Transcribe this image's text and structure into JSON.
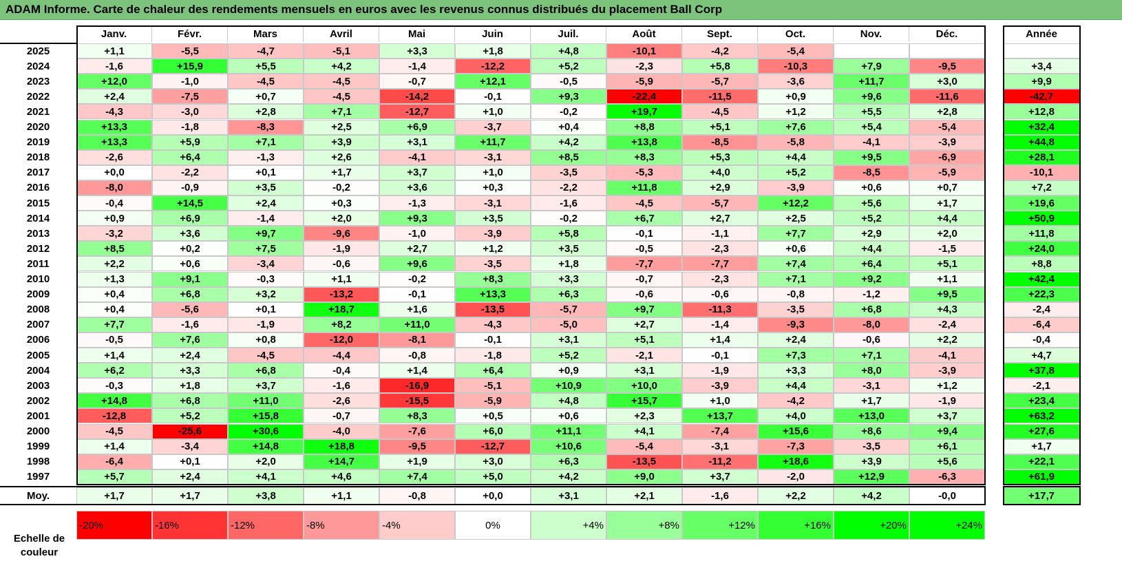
{
  "title": "ADAM Informe. Carte de chaleur des rendements mensuels en euros avec les revenus connus distribués du placement Ball Corp",
  "colors": {
    "negative_max": "#ff0000",
    "neutral": "#ffffff",
    "positive_max": "#00ff00",
    "title_bg": "#7cc47c"
  },
  "chart_data": {
    "type": "heatmap",
    "title": "ADAM Informe. Carte de chaleur des rendements mensuels en euros avec les revenus connus distribués du placement Ball Corp",
    "months": [
      "Janv.",
      "Févr.",
      "Mars",
      "Avril",
      "Mai",
      "Juin",
      "Juil.",
      "Août",
      "Sept.",
      "Oct.",
      "Nov.",
      "Déc."
    ],
    "year_col_label": "Année",
    "rows": [
      {
        "year": "2025",
        "values": [
          "+1,1",
          "-5,5",
          "-4,7",
          "-5,1",
          "+3,3",
          "+1,8",
          "+4,8",
          "-10,1",
          "-4,2",
          "-5,4",
          "",
          ""
        ],
        "annual": ""
      },
      {
        "year": "2024",
        "values": [
          "-1,6",
          "+15,9",
          "+5,5",
          "+4,2",
          "-1,4",
          "-12,2",
          "+5,2",
          "-2,3",
          "+5,8",
          "-10,3",
          "+7,9",
          "-9,5"
        ],
        "annual": "+3,4"
      },
      {
        "year": "2023",
        "values": [
          "+12,0",
          "-1,0",
          "-4,5",
          "-4,5",
          "-0,7",
          "+12,1",
          "-0,5",
          "-5,9",
          "-5,7",
          "-3,6",
          "+11,7",
          "+3,0"
        ],
        "annual": "+9,9"
      },
      {
        "year": "2022",
        "values": [
          "+2,4",
          "-7,5",
          "+0,7",
          "-4,5",
          "-14,2",
          "-0,1",
          "+9,3",
          "-22,4",
          "-11,5",
          "+0,9",
          "+9,6",
          "-11,6"
        ],
        "annual": "-42,7"
      },
      {
        "year": "2021",
        "values": [
          "-4,3",
          "-3,0",
          "+2,8",
          "+7,1",
          "-12,7",
          "+1,0",
          "-0,2",
          "+19,7",
          "-4,5",
          "+1,2",
          "+5,5",
          "+2,8"
        ],
        "annual": "+12,8"
      },
      {
        "year": "2020",
        "values": [
          "+13,3",
          "-1,8",
          "-8,3",
          "+2,5",
          "+6,9",
          "-3,7",
          "+0,4",
          "+8,8",
          "+5,1",
          "+7,6",
          "+5,4",
          "-5,4"
        ],
        "annual": "+32,4"
      },
      {
        "year": "2019",
        "values": [
          "+13,3",
          "+5,9",
          "+7,1",
          "+3,9",
          "+3,1",
          "+11,7",
          "+4,2",
          "+13,8",
          "-8,5",
          "-5,8",
          "-4,1",
          "-3,9"
        ],
        "annual": "+44,8"
      },
      {
        "year": "2018",
        "values": [
          "-2,6",
          "+6,4",
          "-1,3",
          "+2,6",
          "-4,1",
          "-3,1",
          "+8,5",
          "+8,3",
          "+5,3",
          "+4,4",
          "+9,5",
          "-6,9"
        ],
        "annual": "+28,1"
      },
      {
        "year": "2017",
        "values": [
          "+0,0",
          "-2,2",
          "+0,1",
          "+1,7",
          "+3,7",
          "+1,0",
          "-3,5",
          "-5,3",
          "+4,0",
          "+5,2",
          "-8,5",
          "-5,9"
        ],
        "annual": "-10,1"
      },
      {
        "year": "2016",
        "values": [
          "-8,0",
          "-0,9",
          "+3,5",
          "-0,2",
          "+3,6",
          "+0,3",
          "-2,2",
          "+11,8",
          "+2,9",
          "-3,9",
          "+0,6",
          "+0,7"
        ],
        "annual": "+7,2"
      },
      {
        "year": "2015",
        "values": [
          "-0,4",
          "+14,5",
          "+2,4",
          "+0,3",
          "-1,3",
          "-3,1",
          "-1,6",
          "-4,5",
          "-5,7",
          "+12,2",
          "+5,6",
          "+1,7"
        ],
        "annual": "+19,6"
      },
      {
        "year": "2014",
        "values": [
          "+0,9",
          "+6,9",
          "-1,4",
          "+2,0",
          "+9,3",
          "+3,5",
          "-0,2",
          "+6,7",
          "+2,7",
          "+2,5",
          "+5,2",
          "+4,4"
        ],
        "annual": "+50,9"
      },
      {
        "year": "2013",
        "values": [
          "-3,2",
          "+3,6",
          "+9,7",
          "-9,6",
          "-1,0",
          "-3,9",
          "+5,8",
          "-0,1",
          "-1,1",
          "+7,7",
          "+2,9",
          "+2,0"
        ],
        "annual": "+11,8"
      },
      {
        "year": "2012",
        "values": [
          "+8,5",
          "+0,2",
          "+7,5",
          "-1,9",
          "+2,7",
          "+1,2",
          "+3,5",
          "-0,5",
          "-2,3",
          "+0,6",
          "+4,4",
          "-1,5"
        ],
        "annual": "+24,0"
      },
      {
        "year": "2011",
        "values": [
          "+2,2",
          "+0,6",
          "-3,4",
          "-0,6",
          "+9,6",
          "-3,5",
          "+1,8",
          "-7,7",
          "-7,7",
          "+7,4",
          "+6,4",
          "+5,1"
        ],
        "annual": "+8,8"
      },
      {
        "year": "2010",
        "values": [
          "+1,3",
          "+9,1",
          "-0,3",
          "+1,1",
          "-0,2",
          "+8,3",
          "+3,3",
          "-0,7",
          "-2,3",
          "+7,1",
          "+9,2",
          "+1,1"
        ],
        "annual": "+42,4"
      },
      {
        "year": "2009",
        "values": [
          "+0,4",
          "+6,8",
          "+3,2",
          "-13,2",
          "-0,1",
          "+13,3",
          "+6,3",
          "-0,6",
          "-0,6",
          "-0,8",
          "-1,2",
          "+9,5"
        ],
        "annual": "+22,3"
      },
      {
        "year": "2008",
        "values": [
          "+0,4",
          "-5,6",
          "+0,1",
          "+18,7",
          "+1,6",
          "-13,5",
          "-5,7",
          "+9,7",
          "-11,3",
          "-3,5",
          "+6,8",
          "+4,3"
        ],
        "annual": "-2,4"
      },
      {
        "year": "2007",
        "values": [
          "+7,7",
          "-1,6",
          "-1,9",
          "+8,2",
          "+11,0",
          "-4,3",
          "-5,0",
          "+2,7",
          "-1,4",
          "-9,3",
          "-8,0",
          "-2,4"
        ],
        "annual": "-6,4"
      },
      {
        "year": "2006",
        "values": [
          "-0,5",
          "+7,6",
          "+0,8",
          "-12,0",
          "-8,1",
          "-0,1",
          "+3,1",
          "+5,1",
          "+1,4",
          "+2,4",
          "-0,6",
          "+2,2"
        ],
        "annual": "-0,4"
      },
      {
        "year": "2005",
        "values": [
          "+1,4",
          "+2,4",
          "-4,5",
          "-4,4",
          "-0,8",
          "-1,8",
          "+5,2",
          "-2,1",
          "-0,1",
          "+7,3",
          "+7,1",
          "-4,1"
        ],
        "annual": "+4,7"
      },
      {
        "year": "2004",
        "values": [
          "+6,2",
          "+3,3",
          "+6,8",
          "-0,4",
          "+1,4",
          "+6,4",
          "+0,9",
          "+3,1",
          "-1,9",
          "+3,3",
          "+8,0",
          "-3,9"
        ],
        "annual": "+37,8"
      },
      {
        "year": "2003",
        "values": [
          "-0,3",
          "+1,8",
          "+3,7",
          "-1,6",
          "-16,9",
          "-5,1",
          "+10,9",
          "+10,0",
          "-3,9",
          "+4,4",
          "-3,1",
          "+1,2"
        ],
        "annual": "-2,1"
      },
      {
        "year": "2002",
        "values": [
          "+14,8",
          "+6,8",
          "+11,0",
          "-2,6",
          "-15,5",
          "-5,9",
          "+4,8",
          "+15,7",
          "+1,0",
          "-4,2",
          "+1,7",
          "-1,9"
        ],
        "annual": "+23,4"
      },
      {
        "year": "2001",
        "values": [
          "-12,8",
          "+5,2",
          "+15,8",
          "-0,7",
          "+8,3",
          "+0,5",
          "+0,6",
          "+2,3",
          "+13,7",
          "+4,0",
          "+13,0",
          "+3,7"
        ],
        "annual": "+63,2"
      },
      {
        "year": "2000",
        "values": [
          "-4,5",
          "-25,6",
          "+30,6",
          "-4,0",
          "-7,6",
          "+6,0",
          "+11,1",
          "+4,1",
          "-7,4",
          "+15,6",
          "+8,6",
          "+9,4"
        ],
        "annual": "+27,6"
      },
      {
        "year": "1999",
        "values": [
          "+1,4",
          "-3,4",
          "+14,8",
          "+18,8",
          "-9,5",
          "-12,7",
          "+10,6",
          "-5,4",
          "-3,1",
          "-7,3",
          "-3,5",
          "+6,1"
        ],
        "annual": "+1,7"
      },
      {
        "year": "1998",
        "values": [
          "-6,4",
          "+0,1",
          "+2,0",
          "+14,7",
          "+1,9",
          "+3,0",
          "+6,3",
          "-13,5",
          "-11,2",
          "+18,6",
          "+3,9",
          "+5,6"
        ],
        "annual": "+22,1"
      },
      {
        "year": "1997",
        "values": [
          "+5,7",
          "+2,4",
          "+4,1",
          "+4,6",
          "+7,4",
          "+5,0",
          "+4,2",
          "+9,0",
          "+3,7",
          "-2,0",
          "+12,9",
          "-6,3"
        ],
        "annual": "+61,9"
      }
    ],
    "average": {
      "label": "Moy.",
      "values": [
        "+1,7",
        "+1,7",
        "+3,8",
        "+1,1",
        "-0,8",
        "+0,0",
        "+3,1",
        "+2,1",
        "-1,6",
        "+2,2",
        "+4,2",
        "-0,0"
      ],
      "annual": "+17,7"
    },
    "color_scale": {
      "label": "Echelle de couleur",
      "stops": [
        "-20%",
        "-16%",
        "-12%",
        "-8%",
        "-4%",
        "0%",
        "+4%",
        "+8%",
        "+12%",
        "+16%",
        "+20%",
        "+24%"
      ],
      "stop_values": [
        -20,
        -16,
        -12,
        -8,
        -4,
        0,
        4,
        8,
        12,
        16,
        20,
        24
      ],
      "monthly_saturation": 20,
      "annual_saturation": 32
    }
  }
}
